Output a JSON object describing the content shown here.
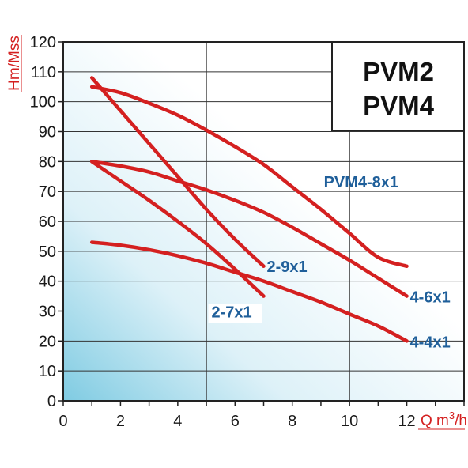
{
  "chart_data": {
    "type": "line",
    "title_lines": [
      "PVM2",
      "PVM4"
    ],
    "xlabel": "Q m3/h",
    "ylabel": "Hm/Mss",
    "xlim": [
      0,
      14
    ],
    "ylim": [
      0,
      120
    ],
    "xticks": [
      0,
      2,
      4,
      6,
      8,
      10,
      12
    ],
    "yticks": [
      0,
      10,
      20,
      30,
      40,
      50,
      60,
      70,
      80,
      90,
      100,
      110,
      120
    ],
    "grid": true,
    "series": [
      {
        "name": "PVM4-8x1",
        "points": [
          [
            1,
            105
          ],
          [
            2,
            103
          ],
          [
            3,
            99.5
          ],
          [
            4,
            95.5
          ],
          [
            5,
            90.5
          ],
          [
            6,
            85
          ],
          [
            7,
            79
          ],
          [
            8,
            71.5
          ],
          [
            9,
            64
          ],
          [
            10,
            56
          ],
          [
            11,
            48
          ],
          [
            12,
            45
          ]
        ]
      },
      {
        "name": "4-6x1",
        "points": [
          [
            1,
            80
          ],
          [
            2,
            78.5
          ],
          [
            3,
            76.5
          ],
          [
            4,
            73.5
          ],
          [
            5,
            70.5
          ],
          [
            6,
            67
          ],
          [
            7,
            63
          ],
          [
            8,
            58
          ],
          [
            9,
            52.5
          ],
          [
            10,
            47
          ],
          [
            11,
            41
          ],
          [
            12,
            35
          ]
        ]
      },
      {
        "name": "4-4x1",
        "points": [
          [
            1,
            53
          ],
          [
            2,
            52
          ],
          [
            3,
            50.5
          ],
          [
            4,
            48.5
          ],
          [
            5,
            46
          ],
          [
            6,
            43
          ],
          [
            7,
            40
          ],
          [
            8,
            36.5
          ],
          [
            9,
            33
          ],
          [
            10,
            29
          ],
          [
            11,
            25
          ],
          [
            12,
            20
          ]
        ]
      },
      {
        "name": "2-9x1",
        "points": [
          [
            1,
            108
          ],
          [
            2,
            97
          ],
          [
            3,
            86
          ],
          [
            4,
            75
          ],
          [
            5,
            64
          ],
          [
            6,
            54
          ],
          [
            7,
            45
          ]
        ]
      },
      {
        "name": "2-7x1",
        "points": [
          [
            1,
            80
          ],
          [
            2,
            73.5
          ],
          [
            3,
            67
          ],
          [
            4,
            60
          ],
          [
            5,
            52.5
          ],
          [
            6,
            44
          ],
          [
            7,
            35
          ]
        ]
      }
    ],
    "curve_color": "#d42020",
    "label_color": "#1f5f9a",
    "axis_title_color": "#d42020"
  }
}
